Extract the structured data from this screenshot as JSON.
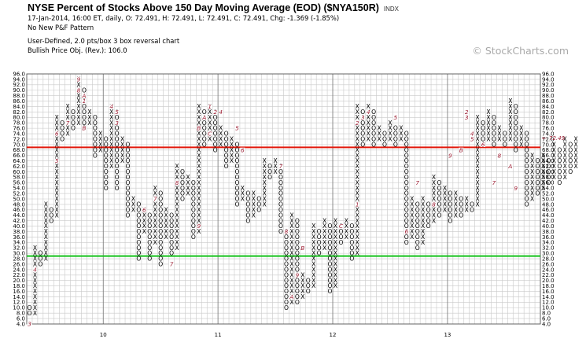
{
  "header": {
    "title": "NYSE Percent of Stocks Above 150 Day Moving Average (EOD) ($NYA150R)",
    "index_tag": "INDX",
    "quote": "17-Jan-2014, 16:00 ET, daily, O: 72.491, H: 72.491, L: 72.491, C: 72.491, Chg: -1.369 (-1.85%)",
    "pattern": "No New P&F Pattern",
    "box": "User-Defined, 2.0 pts/box 3 box reversal chart",
    "objective": "Bullish Price Obj. (Rev.): 106.0"
  },
  "watermark": "© StockCharts.com",
  "chart_data": {
    "type": "point-and-figure",
    "box_size": 2.0,
    "reversal": 3,
    "ylim": [
      4,
      96
    ],
    "y_ticks": [
      96,
      94,
      92,
      90,
      88,
      86,
      84,
      82,
      80,
      78,
      76,
      74,
      72,
      70,
      68,
      66,
      64,
      62,
      60,
      58,
      56,
      54,
      52,
      50,
      48,
      46,
      44,
      42,
      40,
      38,
      36,
      34,
      32,
      30,
      28,
      26,
      24,
      22,
      20,
      18,
      16,
      14,
      12,
      10,
      8,
      6,
      4
    ],
    "x_labels": [
      {
        "label": "10",
        "col": 14
      },
      {
        "label": "11",
        "col": 35
      },
      {
        "label": "12",
        "col": 56
      },
      {
        "label": "13",
        "col": 77
      }
    ],
    "last_price_label": "72.49",
    "last_price_prefix": "←",
    "last_price": 72.49,
    "reference_lines": [
      {
        "name": "upper-line",
        "value": 69,
        "color": "#e3170a"
      },
      {
        "name": "lower-line",
        "value": 29,
        "color": "#13c21a"
      }
    ],
    "columns": [
      {
        "t": "O",
        "lo": 8,
        "hi": 10
      },
      {
        "t": "X",
        "lo": 8,
        "hi": 32
      },
      {
        "t": "O",
        "lo": 26,
        "hi": 30
      },
      {
        "t": "X",
        "lo": 28,
        "hi": 48
      },
      {
        "t": "O",
        "lo": 42,
        "hi": 46
      },
      {
        "t": "X",
        "lo": 44,
        "hi": 80
      },
      {
        "t": "O",
        "lo": 72,
        "hi": 78
      },
      {
        "t": "X",
        "lo": 74,
        "hi": 84
      },
      {
        "t": "O",
        "lo": 76,
        "hi": 82
      },
      {
        "t": "X",
        "lo": 78,
        "hi": 94
      },
      {
        "t": "O",
        "lo": 76,
        "hi": 90
      },
      {
        "t": "X",
        "lo": 78,
        "hi": 82
      },
      {
        "t": "O",
        "lo": 66,
        "hi": 80
      },
      {
        "t": "X",
        "lo": 68,
        "hi": 74
      },
      {
        "t": "O",
        "lo": 54,
        "hi": 72
      },
      {
        "t": "X",
        "lo": 62,
        "hi": 84
      },
      {
        "t": "O",
        "lo": 54,
        "hi": 82
      },
      {
        "t": "X",
        "lo": 64,
        "hi": 72
      },
      {
        "t": "O",
        "lo": 44,
        "hi": 70
      },
      {
        "t": "X",
        "lo": 46,
        "hi": 50
      },
      {
        "t": "O",
        "lo": 28,
        "hi": 48
      },
      {
        "t": "X",
        "lo": 38,
        "hi": 46
      },
      {
        "t": "O",
        "lo": 28,
        "hi": 44
      },
      {
        "t": "X",
        "lo": 34,
        "hi": 54
      },
      {
        "t": "O",
        "lo": 26,
        "hi": 52
      },
      {
        "t": "X",
        "lo": 36,
        "hi": 46
      },
      {
        "t": "O",
        "lo": 30,
        "hi": 44
      },
      {
        "t": "X",
        "lo": 32,
        "hi": 62
      },
      {
        "t": "O",
        "lo": 50,
        "hi": 60
      },
      {
        "t": "X",
        "lo": 52,
        "hi": 58
      },
      {
        "t": "O",
        "lo": 36,
        "hi": 56
      },
      {
        "t": "X",
        "lo": 38,
        "hi": 84
      },
      {
        "t": "O",
        "lo": 70,
        "hi": 82
      },
      {
        "t": "X",
        "lo": 72,
        "hi": 84
      },
      {
        "t": "O",
        "lo": 68,
        "hi": 82
      },
      {
        "t": "X",
        "lo": 70,
        "hi": 76
      },
      {
        "t": "O",
        "lo": 62,
        "hi": 74
      },
      {
        "t": "X",
        "lo": 64,
        "hi": 72
      },
      {
        "t": "O",
        "lo": 48,
        "hi": 70
      },
      {
        "t": "X",
        "lo": 50,
        "hi": 54
      },
      {
        "t": "O",
        "lo": 42,
        "hi": 52
      },
      {
        "t": "X",
        "lo": 44,
        "hi": 52
      },
      {
        "t": "O",
        "lo": 46,
        "hi": 50
      },
      {
        "t": "X",
        "lo": 48,
        "hi": 64
      },
      {
        "t": "O",
        "lo": 58,
        "hi": 62
      },
      {
        "t": "X",
        "lo": 60,
        "hi": 64
      },
      {
        "t": "O",
        "lo": 38,
        "hi": 62
      },
      {
        "t": "O",
        "lo": 10,
        "hi": 38
      },
      {
        "t": "X",
        "lo": 12,
        "hi": 44
      },
      {
        "t": "O",
        "lo": 12,
        "hi": 42
      },
      {
        "t": "X",
        "lo": 14,
        "hi": 22
      },
      {
        "t": "O",
        "lo": 16,
        "hi": 20
      },
      {
        "t": "X",
        "lo": 18,
        "hi": 40
      },
      {
        "t": "O",
        "lo": 30,
        "hi": 38
      },
      {
        "t": "X",
        "lo": 32,
        "hi": 42
      },
      {
        "t": "O",
        "lo": 16,
        "hi": 40
      },
      {
        "t": "X",
        "lo": 18,
        "hi": 42
      },
      {
        "t": "O",
        "lo": 34,
        "hi": 40
      },
      {
        "t": "X",
        "lo": 36,
        "hi": 42
      },
      {
        "t": "O",
        "lo": 28,
        "hi": 40
      },
      {
        "t": "X",
        "lo": 30,
        "hi": 84
      },
      {
        "t": "O",
        "lo": 70,
        "hi": 82
      },
      {
        "t": "X",
        "lo": 72,
        "hi": 84
      },
      {
        "t": "O",
        "lo": 70,
        "hi": 82
      },
      {
        "t": "X",
        "lo": 72,
        "hi": 76
      },
      {
        "t": "O",
        "lo": 70,
        "hi": 74
      },
      {
        "t": "X",
        "lo": 72,
        "hi": 78
      },
      {
        "t": "O",
        "lo": 70,
        "hi": 76
      },
      {
        "t": "X",
        "lo": 72,
        "hi": 76
      },
      {
        "t": "O",
        "lo": 34,
        "hi": 74
      },
      {
        "t": "X",
        "lo": 36,
        "hi": 50
      },
      {
        "t": "O",
        "lo": 32,
        "hi": 48
      },
      {
        "t": "X",
        "lo": 34,
        "hi": 50
      },
      {
        "t": "O",
        "lo": 40,
        "hi": 48
      },
      {
        "t": "X",
        "lo": 42,
        "hi": 58
      },
      {
        "t": "O",
        "lo": 44,
        "hi": 56
      },
      {
        "t": "X",
        "lo": 46,
        "hi": 54
      },
      {
        "t": "O",
        "lo": 42,
        "hi": 52
      },
      {
        "t": "X",
        "lo": 44,
        "hi": 52
      },
      {
        "t": "O",
        "lo": 44,
        "hi": 50
      },
      {
        "t": "X",
        "lo": 46,
        "hi": 50
      },
      {
        "t": "O",
        "lo": 46,
        "hi": 48
      },
      {
        "t": "X",
        "lo": 48,
        "hi": 80
      },
      {
        "t": "O",
        "lo": 70,
        "hi": 78
      },
      {
        "t": "X",
        "lo": 72,
        "hi": 82
      },
      {
        "t": "O",
        "lo": 70,
        "hi": 80
      },
      {
        "t": "X",
        "lo": 72,
        "hi": 76
      },
      {
        "t": "O",
        "lo": 70,
        "hi": 74
      },
      {
        "t": "X",
        "lo": 72,
        "hi": 86
      },
      {
        "t": "O",
        "lo": 68,
        "hi": 84
      },
      {
        "t": "X",
        "lo": 70,
        "hi": 76
      },
      {
        "t": "O",
        "lo": 48,
        "hi": 74
      },
      {
        "t": "X",
        "lo": 50,
        "hi": 66
      },
      {
        "t": "O",
        "lo": 52,
        "hi": 64
      },
      {
        "t": "X",
        "lo": 54,
        "hi": 66
      },
      {
        "t": "O",
        "lo": 56,
        "hi": 64
      },
      {
        "t": "X",
        "lo": 58,
        "hi": 70
      },
      {
        "t": "O",
        "lo": 56,
        "hi": 68
      },
      {
        "t": "X",
        "lo": 58,
        "hi": 72
      },
      {
        "t": "O",
        "lo": 60,
        "hi": 70
      },
      {
        "t": "X",
        "lo": 62,
        "hi": 72
      }
    ],
    "month_marks": [
      {
        "col": 0,
        "value": 4,
        "label": "3"
      },
      {
        "col": 1,
        "value": 24,
        "label": "4"
      },
      {
        "col": 5,
        "value": 64,
        "label": "5"
      },
      {
        "col": 5,
        "value": 74,
        "label": "6"
      },
      {
        "col": 7,
        "value": 78,
        "label": "7"
      },
      {
        "col": 9,
        "value": 94,
        "label": "9"
      },
      {
        "col": 10,
        "value": 88,
        "label": "A"
      },
      {
        "col": 9,
        "value": 90,
        "label": "8"
      },
      {
        "col": 10,
        "value": 86,
        "label": "1"
      },
      {
        "col": 10,
        "value": 76,
        "label": "B"
      },
      {
        "col": 15,
        "value": 84,
        "label": "4"
      },
      {
        "col": 16,
        "value": 82,
        "label": "5"
      },
      {
        "col": 16,
        "value": 78,
        "label": "3"
      },
      {
        "col": 21,
        "value": 46,
        "label": "6"
      },
      {
        "col": 23,
        "value": 50,
        "label": "7"
      },
      {
        "col": 26,
        "value": 26,
        "label": "7"
      },
      {
        "col": 27,
        "value": 56,
        "label": "8"
      },
      {
        "col": 31,
        "value": 40,
        "label": "9"
      },
      {
        "col": 31,
        "value": 76,
        "label": "B"
      },
      {
        "col": 32,
        "value": 80,
        "label": "A"
      },
      {
        "col": 33,
        "value": 74,
        "label": "C"
      },
      {
        "col": 33,
        "value": 84,
        "label": "1"
      },
      {
        "col": 34,
        "value": 82,
        "label": "2"
      },
      {
        "col": 35,
        "value": 82,
        "label": "4"
      },
      {
        "col": 38,
        "value": 76,
        "label": "5"
      },
      {
        "col": 39,
        "value": 68,
        "label": "6"
      },
      {
        "col": 46,
        "value": 62,
        "label": "7"
      },
      {
        "col": 47,
        "value": 38,
        "label": "8"
      },
      {
        "col": 48,
        "value": 14,
        "label": "A"
      },
      {
        "col": 49,
        "value": 22,
        "label": "9"
      },
      {
        "col": 50,
        "value": 32,
        "label": "B"
      },
      {
        "col": 57,
        "value": 40,
        "label": "C"
      },
      {
        "col": 60,
        "value": 48,
        "label": "1"
      },
      {
        "col": 60,
        "value": 78,
        "label": "2"
      },
      {
        "col": 61,
        "value": 80,
        "label": "3"
      },
      {
        "col": 62,
        "value": 82,
        "label": "4"
      },
      {
        "col": 67,
        "value": 80,
        "label": "5"
      },
      {
        "col": 69,
        "value": 38,
        "label": "6"
      },
      {
        "col": 71,
        "value": 56,
        "label": "7"
      },
      {
        "col": 74,
        "value": 48,
        "label": "8"
      },
      {
        "col": 77,
        "value": 66,
        "label": "9"
      },
      {
        "col": 79,
        "value": 68,
        "label": "B"
      },
      {
        "col": 80,
        "value": 80,
        "label": "3"
      },
      {
        "col": 80,
        "value": 82,
        "label": "2"
      },
      {
        "col": 81,
        "value": 74,
        "label": "4"
      },
      {
        "col": 81,
        "value": 72,
        "label": "5"
      },
      {
        "col": 83,
        "value": 70,
        "label": "6"
      },
      {
        "col": 85,
        "value": 56,
        "label": "7"
      },
      {
        "col": 86,
        "value": 66,
        "label": "8"
      },
      {
        "col": 88,
        "value": 62,
        "label": "A"
      },
      {
        "col": 89,
        "value": 54,
        "label": "9"
      }
    ]
  }
}
